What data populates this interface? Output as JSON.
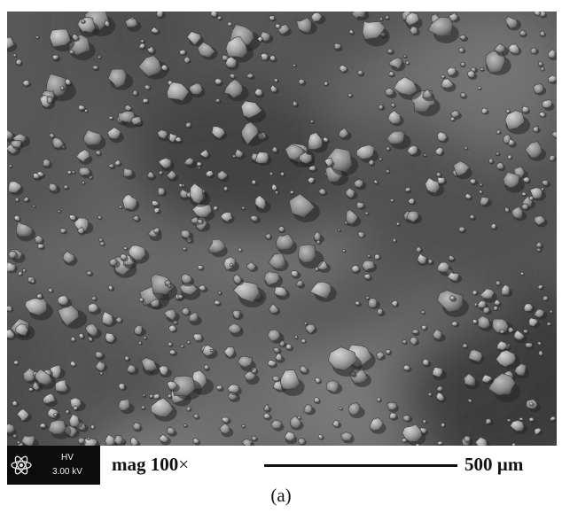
{
  "info_bar": {
    "hv_label": "HV",
    "hv_value": "3.00 kV",
    "mag_value": "mag 100",
    "mag_symbol": "×",
    "scale_label": "500 µm"
  },
  "caption": "(a)",
  "icons": {
    "detector": "atom-icon"
  },
  "colors": {
    "background": "#ffffff",
    "micrograph_gray": "#5a5a5a",
    "detector_box": "#0c0c0c"
  }
}
